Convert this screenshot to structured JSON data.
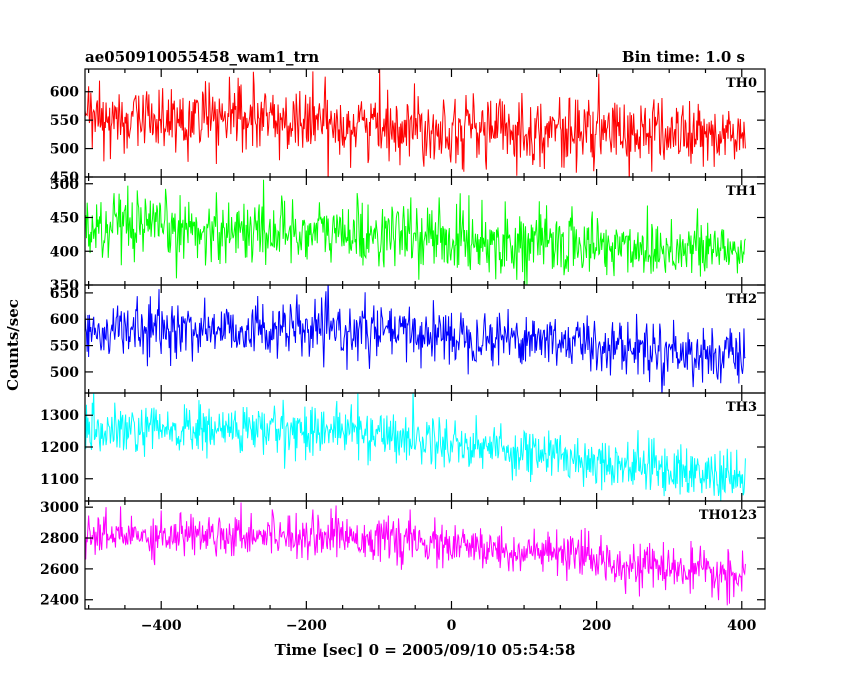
{
  "header": {
    "title": "ae050910055458_wam1_trn",
    "bin_time": "Bin time: 1.0 s"
  },
  "axes": {
    "xlabel": "Time [sec] 0 = 2005/09/10 05:54:58",
    "ylabel": "Counts/sec"
  },
  "chart_data": {
    "type": "line",
    "x_range": [
      -505,
      405
    ],
    "xlim": [
      -505,
      432
    ],
    "x_ticks": [
      -400,
      -200,
      0,
      200,
      400
    ],
    "x_tick_labels": [
      "−400",
      "−200",
      "0",
      "200",
      "400"
    ],
    "bin_seconds": 1.0,
    "grid": false,
    "series": [
      {
        "name": "TH0",
        "color": "#ff0000",
        "ylim": [
          450,
          640
        ],
        "y_ticks": [
          450,
          500,
          550,
          600
        ],
        "y_tick_labels": [
          "450",
          "500",
          "550",
          "600"
        ],
        "trend": [
          [
            -505,
            550
          ],
          [
            -300,
            552
          ],
          [
            -100,
            542
          ],
          [
            100,
            532
          ],
          [
            300,
            527
          ],
          [
            405,
            520
          ]
        ],
        "noise_sd": 30
      },
      {
        "name": "TH1",
        "color": "#00ff00",
        "ylim": [
          350,
          510
        ],
        "y_ticks": [
          350,
          400,
          450,
          500
        ],
        "y_tick_labels": [
          "350",
          "400",
          "450",
          "500"
        ],
        "trend": [
          [
            -505,
            432
          ],
          [
            -300,
            432
          ],
          [
            -100,
            425
          ],
          [
            100,
            412
          ],
          [
            300,
            405
          ],
          [
            405,
            400
          ]
        ],
        "noise_sd": 24
      },
      {
        "name": "TH2",
        "color": "#0000ff",
        "ylim": [
          460,
          665
        ],
        "y_ticks": [
          500,
          550,
          600,
          650
        ],
        "y_tick_labels": [
          "500",
          "550",
          "600",
          "650"
        ],
        "trend": [
          [
            -505,
            578
          ],
          [
            -300,
            582
          ],
          [
            -100,
            575
          ],
          [
            100,
            565
          ],
          [
            300,
            540
          ],
          [
            405,
            525
          ]
        ],
        "noise_sd": 26
      },
      {
        "name": "TH3",
        "color": "#00ffff",
        "ylim": [
          1030,
          1370
        ],
        "y_ticks": [
          1100,
          1200,
          1300
        ],
        "y_tick_labels": [
          "1100",
          "1200",
          "1300"
        ],
        "trend": [
          [
            -505,
            1245
          ],
          [
            -300,
            1255
          ],
          [
            -150,
            1255
          ],
          [
            0,
            1215
          ],
          [
            150,
            1170
          ],
          [
            300,
            1130
          ],
          [
            405,
            1095
          ]
        ],
        "noise_sd": 40
      },
      {
        "name": "TH0123",
        "color": "#ff00ff",
        "ylim": [
          2340,
          3040
        ],
        "y_ticks": [
          2400,
          2600,
          2800,
          3000
        ],
        "y_tick_labels": [
          "2400",
          "2600",
          "2800",
          "3000"
        ],
        "trend": [
          [
            -505,
            2810
          ],
          [
            -300,
            2830
          ],
          [
            -150,
            2820
          ],
          [
            0,
            2745
          ],
          [
            150,
            2690
          ],
          [
            300,
            2600
          ],
          [
            405,
            2540
          ]
        ],
        "noise_sd": 70
      }
    ]
  }
}
